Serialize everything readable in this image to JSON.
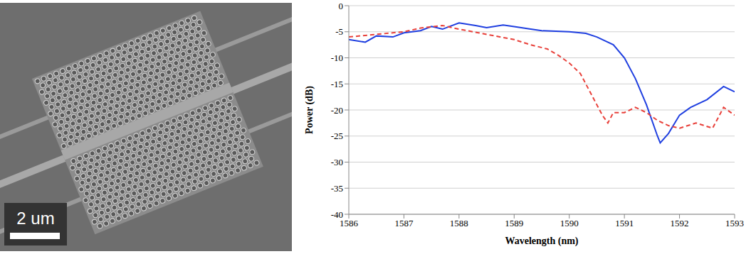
{
  "image": {
    "scale_bar_label": "2 um"
  },
  "chart_data": {
    "type": "line",
    "x_label": "Wavelength (nm)",
    "y_label": "Power (dB)",
    "xlim": [
      1586,
      1593
    ],
    "xticks": [
      1586,
      1587,
      1588,
      1589,
      1590,
      1591,
      1592,
      1593
    ],
    "ylim": [
      -40,
      0
    ],
    "yticks": [
      -40,
      -35,
      -30,
      -25,
      -20,
      -15,
      -10,
      -5,
      0
    ],
    "grid": true,
    "series": [
      {
        "color": "#1f3fe0",
        "line_style": "solid",
        "marker": "none",
        "x": [
          1586,
          1586.3,
          1586.5,
          1586.8,
          1587,
          1587.3,
          1587.5,
          1587.7,
          1588,
          1588.3,
          1588.5,
          1588.8,
          1589,
          1589.3,
          1589.5,
          1590,
          1590.3,
          1590.5,
          1590.8,
          1591,
          1591.2,
          1591.4,
          1591.6,
          1591.65,
          1591.8,
          1592,
          1592.2,
          1592.5,
          1592.8,
          1593
        ],
        "values": [
          -6.5,
          -7,
          -5.8,
          -6,
          -5.2,
          -4.8,
          -4,
          -4.5,
          -3.3,
          -3.8,
          -4.2,
          -3.7,
          -4,
          -4.5,
          -4.8,
          -5,
          -5.3,
          -6,
          -7.5,
          -10,
          -14,
          -19,
          -25,
          -26.3,
          -24.5,
          -21,
          -19.5,
          -18,
          -15.5,
          -16.5
        ]
      },
      {
        "color": "#e8403a",
        "line_style": "dashed",
        "marker": "none",
        "x": [
          1586,
          1586.5,
          1587,
          1587.3,
          1587.7,
          1588,
          1588.5,
          1589,
          1589.3,
          1589.6,
          1589.8,
          1590,
          1590.2,
          1590.4,
          1590.6,
          1590.7,
          1590.8,
          1591,
          1591.2,
          1591.4,
          1591.6,
          1591.8,
          1592,
          1592.3,
          1592.6,
          1592.8,
          1593
        ],
        "values": [
          -6,
          -5.5,
          -5,
          -4.3,
          -3.8,
          -4.5,
          -5.5,
          -6.5,
          -7.5,
          -8.3,
          -9.5,
          -11,
          -13,
          -17,
          -21,
          -22.5,
          -20.5,
          -20.5,
          -19.5,
          -20.5,
          -22,
          -23,
          -23.5,
          -22.5,
          -23.5,
          -19.5,
          -21
        ]
      }
    ]
  }
}
